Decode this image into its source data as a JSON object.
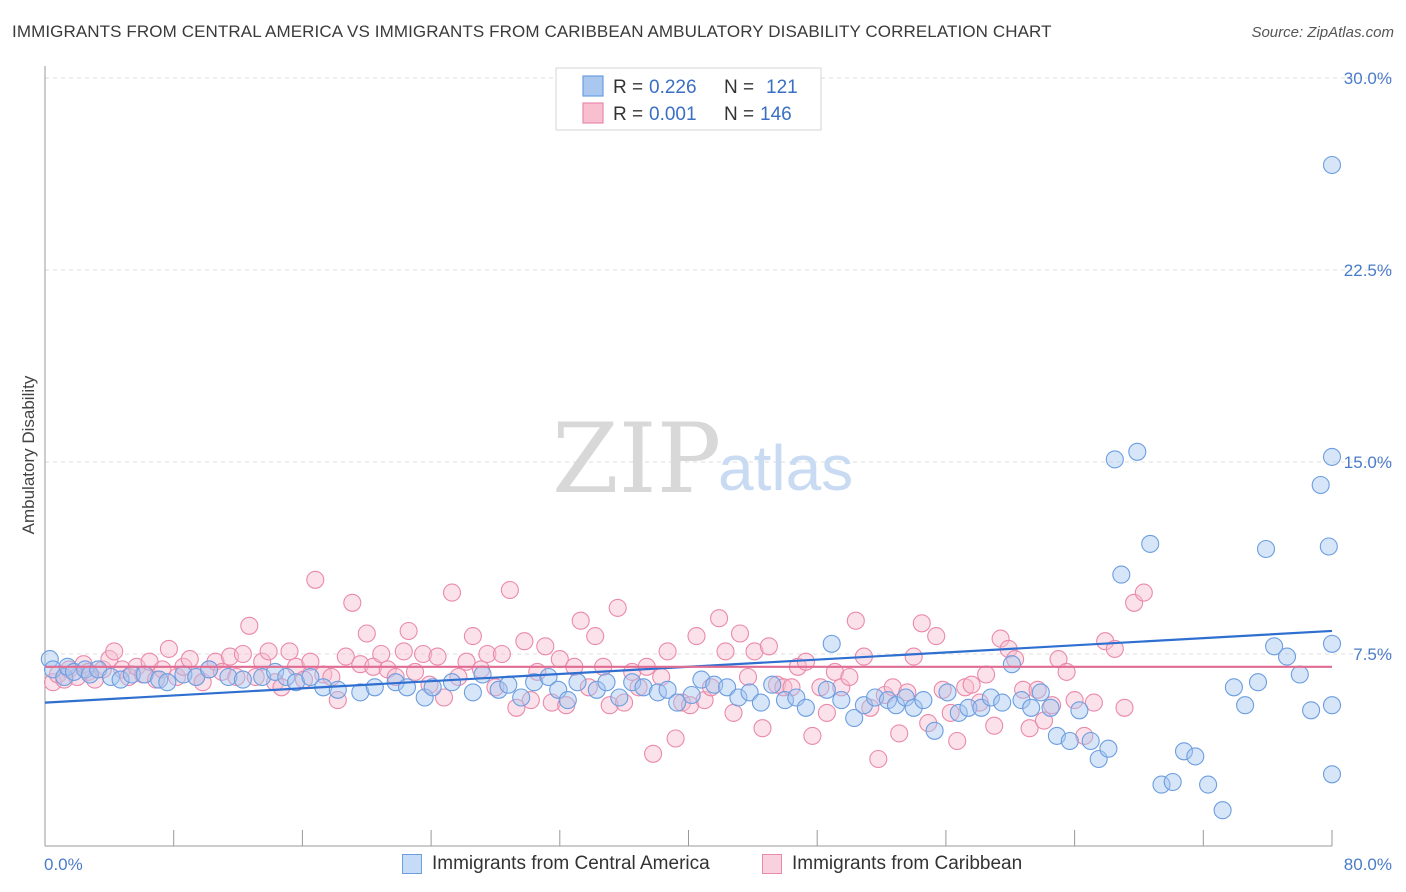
{
  "title": "IMMIGRANTS FROM CENTRAL AMERICA VS IMMIGRANTS FROM CARIBBEAN AMBULATORY DISABILITY CORRELATION CHART",
  "source": "Source: ZipAtlas.com",
  "watermark": {
    "zip": "ZIP",
    "atlas": "atlas"
  },
  "stats": [
    {
      "r_label": "R =",
      "r": "0.226",
      "n_label": "N =",
      "n": "121",
      "color": "#a9c7ef",
      "stroke": "#6c9ee0"
    },
    {
      "r_label": "R =",
      "r": "0.001",
      "n_label": "N =",
      "n": "146",
      "color": "#f7bfd0",
      "stroke": "#ea8aaa"
    }
  ],
  "legend": [
    "Immigrants from Central America",
    "Immigrants from Caribbean"
  ],
  "chart_data": {
    "type": "scatter",
    "title": "IMMIGRANTS FROM CENTRAL AMERICA VS IMMIGRANTS FROM CARIBBEAN AMBULATORY DISABILITY CORRELATION CHART",
    "ylabel": "Ambulatory Disability",
    "xlabel": "",
    "xlim": [
      0,
      80
    ],
    "ylim": [
      0,
      30
    ],
    "x_tick_labels": [
      "0.0%",
      "80.0%"
    ],
    "y_tick_labels": [
      "7.5%",
      "15.0%",
      "22.5%",
      "30.0%"
    ],
    "y_ticks": [
      7.5,
      15,
      22.5,
      30
    ],
    "grid": true,
    "legend_position": "bottom",
    "series": [
      {
        "name": "Immigrants from Central America",
        "color": "#6c9ee0",
        "fill": "rgba(166,198,240,0.45)",
        "trend": {
          "x": [
            0,
            80
          ],
          "y": [
            5.6,
            8.4
          ]
        },
        "points": [
          [
            0.3,
            7.3
          ],
          [
            0.5,
            6.9
          ],
          [
            1.2,
            6.6
          ],
          [
            1.4,
            7.0
          ],
          [
            1.8,
            6.8
          ],
          [
            2.5,
            6.9
          ],
          [
            2.8,
            6.7
          ],
          [
            3.3,
            6.9
          ],
          [
            4.1,
            6.6
          ],
          [
            4.7,
            6.5
          ],
          [
            5.4,
            6.7
          ],
          [
            6.2,
            6.7
          ],
          [
            7.1,
            6.5
          ],
          [
            7.6,
            6.4
          ],
          [
            8.6,
            6.7
          ],
          [
            9.4,
            6.6
          ],
          [
            10.2,
            6.9
          ],
          [
            11.4,
            6.6
          ],
          [
            12.3,
            6.5
          ],
          [
            13.5,
            6.6
          ],
          [
            14.3,
            6.8
          ],
          [
            15.0,
            6.6
          ],
          [
            15.6,
            6.4
          ],
          [
            16.5,
            6.6
          ],
          [
            17.3,
            6.2
          ],
          [
            18.2,
            6.1
          ],
          [
            19.6,
            6.0
          ],
          [
            20.5,
            6.2
          ],
          [
            21.8,
            6.4
          ],
          [
            22.5,
            6.2
          ],
          [
            23.6,
            5.8
          ],
          [
            24.1,
            6.2
          ],
          [
            25.3,
            6.4
          ],
          [
            26.6,
            6.0
          ],
          [
            27.2,
            6.7
          ],
          [
            28.2,
            6.1
          ],
          [
            28.8,
            6.3
          ],
          [
            29.6,
            5.8
          ],
          [
            30.4,
            6.4
          ],
          [
            31.3,
            6.6
          ],
          [
            31.9,
            6.1
          ],
          [
            32.5,
            5.7
          ],
          [
            33.1,
            6.4
          ],
          [
            34.3,
            6.1
          ],
          [
            34.9,
            6.4
          ],
          [
            35.7,
            5.8
          ],
          [
            36.5,
            6.4
          ],
          [
            37.2,
            6.2
          ],
          [
            38.1,
            6.0
          ],
          [
            38.7,
            6.1
          ],
          [
            39.3,
            5.6
          ],
          [
            40.2,
            5.9
          ],
          [
            40.8,
            6.5
          ],
          [
            41.6,
            6.3
          ],
          [
            42.4,
            6.2
          ],
          [
            43.1,
            5.8
          ],
          [
            43.8,
            6.0
          ],
          [
            44.5,
            5.6
          ],
          [
            45.2,
            6.3
          ],
          [
            46.0,
            5.7
          ],
          [
            46.7,
            5.8
          ],
          [
            47.3,
            5.4
          ],
          [
            48.6,
            6.1
          ],
          [
            48.9,
            7.9
          ],
          [
            49.5,
            5.7
          ],
          [
            50.3,
            5.0
          ],
          [
            50.9,
            5.5
          ],
          [
            51.6,
            5.8
          ],
          [
            52.4,
            5.7
          ],
          [
            52.9,
            5.5
          ],
          [
            53.5,
            5.8
          ],
          [
            54.0,
            5.4
          ],
          [
            54.6,
            5.7
          ],
          [
            55.3,
            4.5
          ],
          [
            56.1,
            6.0
          ],
          [
            56.8,
            5.2
          ],
          [
            57.4,
            5.4
          ],
          [
            58.2,
            5.4
          ],
          [
            58.8,
            5.8
          ],
          [
            59.5,
            5.6
          ],
          [
            60.1,
            7.1
          ],
          [
            60.7,
            5.7
          ],
          [
            61.3,
            5.4
          ],
          [
            61.9,
            6.0
          ],
          [
            62.5,
            5.4
          ],
          [
            62.9,
            4.3
          ],
          [
            63.7,
            4.1
          ],
          [
            64.3,
            5.3
          ],
          [
            65.0,
            4.1
          ],
          [
            65.5,
            3.4
          ],
          [
            66.1,
            3.8
          ],
          [
            66.5,
            15.1
          ],
          [
            66.9,
            10.6
          ],
          [
            67.9,
            15.4
          ],
          [
            68.7,
            11.8
          ],
          [
            69.4,
            2.4
          ],
          [
            70.1,
            2.5
          ],
          [
            70.8,
            3.7
          ],
          [
            71.5,
            3.5
          ],
          [
            72.3,
            2.4
          ],
          [
            73.2,
            1.4
          ],
          [
            73.9,
            6.2
          ],
          [
            74.6,
            5.5
          ],
          [
            75.4,
            6.4
          ],
          [
            75.9,
            11.6
          ],
          [
            76.4,
            7.8
          ],
          [
            77.2,
            7.4
          ],
          [
            78.0,
            6.7
          ],
          [
            78.7,
            5.3
          ],
          [
            79.3,
            14.1
          ],
          [
            79.8,
            11.7
          ],
          [
            80.0,
            15.2
          ],
          [
            80.0,
            7.9
          ],
          [
            80.0,
            5.5
          ],
          [
            80.0,
            2.8
          ],
          [
            80.0,
            26.6
          ]
        ]
      },
      {
        "name": "Immigrants from Caribbean",
        "color": "#ea8aaa",
        "fill": "rgba(247,191,208,0.45)",
        "trend": {
          "x": [
            0,
            80
          ],
          "y": [
            7.0,
            7.0
          ]
        },
        "points": [
          [
            0.5,
            6.4
          ],
          [
            0.8,
            6.7
          ],
          [
            1.2,
            6.5
          ],
          [
            1.5,
            6.9
          ],
          [
            2.0,
            6.6
          ],
          [
            2.4,
            7.1
          ],
          [
            2.7,
            6.8
          ],
          [
            3.1,
            6.5
          ],
          [
            3.6,
            6.9
          ],
          [
            4.0,
            7.3
          ],
          [
            4.3,
            7.6
          ],
          [
            4.8,
            6.9
          ],
          [
            5.2,
            6.6
          ],
          [
            5.7,
            7.0
          ],
          [
            6.1,
            6.7
          ],
          [
            6.5,
            7.2
          ],
          [
            6.9,
            6.5
          ],
          [
            7.3,
            6.9
          ],
          [
            7.7,
            7.7
          ],
          [
            8.2,
            6.6
          ],
          [
            8.6,
            7.0
          ],
          [
            9.0,
            7.3
          ],
          [
            9.4,
            6.6
          ],
          [
            9.8,
            6.4
          ],
          [
            10.2,
            6.9
          ],
          [
            10.6,
            7.2
          ],
          [
            11.0,
            6.8
          ],
          [
            11.5,
            7.4
          ],
          [
            11.9,
            6.6
          ],
          [
            12.3,
            7.5
          ],
          [
            12.7,
            8.6
          ],
          [
            13.1,
            6.6
          ],
          [
            13.5,
            7.2
          ],
          [
            13.9,
            7.6
          ],
          [
            14.3,
            6.4
          ],
          [
            14.7,
            6.2
          ],
          [
            15.2,
            7.6
          ],
          [
            15.6,
            7.0
          ],
          [
            16.1,
            6.5
          ],
          [
            16.5,
            7.2
          ],
          [
            16.8,
            10.4
          ],
          [
            17.3,
            6.7
          ],
          [
            17.8,
            6.6
          ],
          [
            18.2,
            5.7
          ],
          [
            18.7,
            7.4
          ],
          [
            19.1,
            9.5
          ],
          [
            19.6,
            7.1
          ],
          [
            20.0,
            8.3
          ],
          [
            20.4,
            7.0
          ],
          [
            20.9,
            7.5
          ],
          [
            21.3,
            6.9
          ],
          [
            21.8,
            6.6
          ],
          [
            22.3,
            7.6
          ],
          [
            22.6,
            8.4
          ],
          [
            23.0,
            6.8
          ],
          [
            23.5,
            7.5
          ],
          [
            23.9,
            6.3
          ],
          [
            24.4,
            7.4
          ],
          [
            24.8,
            5.8
          ],
          [
            25.3,
            9.9
          ],
          [
            25.7,
            6.6
          ],
          [
            26.2,
            7.2
          ],
          [
            26.6,
            8.2
          ],
          [
            27.1,
            6.9
          ],
          [
            27.5,
            7.5
          ],
          [
            28.0,
            6.2
          ],
          [
            28.4,
            7.5
          ],
          [
            28.9,
            10.0
          ],
          [
            29.3,
            5.4
          ],
          [
            29.8,
            8.0
          ],
          [
            30.2,
            5.7
          ],
          [
            30.6,
            6.8
          ],
          [
            31.1,
            7.8
          ],
          [
            31.5,
            5.6
          ],
          [
            32.0,
            7.3
          ],
          [
            32.4,
            5.5
          ],
          [
            32.9,
            7.0
          ],
          [
            33.3,
            8.8
          ],
          [
            33.8,
            6.2
          ],
          [
            34.2,
            8.2
          ],
          [
            34.7,
            7.0
          ],
          [
            35.1,
            5.5
          ],
          [
            35.6,
            9.3
          ],
          [
            36.0,
            5.6
          ],
          [
            36.5,
            6.8
          ],
          [
            36.9,
            6.2
          ],
          [
            37.4,
            7.0
          ],
          [
            37.8,
            3.6
          ],
          [
            38.3,
            6.6
          ],
          [
            38.7,
            7.6
          ],
          [
            39.2,
            4.2
          ],
          [
            39.6,
            5.6
          ],
          [
            40.1,
            5.5
          ],
          [
            40.5,
            8.2
          ],
          [
            41.0,
            5.7
          ],
          [
            41.4,
            6.2
          ],
          [
            41.9,
            8.9
          ],
          [
            42.3,
            7.6
          ],
          [
            42.8,
            5.2
          ],
          [
            43.2,
            8.3
          ],
          [
            43.7,
            6.6
          ],
          [
            44.1,
            7.6
          ],
          [
            44.6,
            4.6
          ],
          [
            45.0,
            7.8
          ],
          [
            45.5,
            6.3
          ],
          [
            45.9,
            6.2
          ],
          [
            46.4,
            6.2
          ],
          [
            46.8,
            7.0
          ],
          [
            47.3,
            7.2
          ],
          [
            47.7,
            4.3
          ],
          [
            48.2,
            6.2
          ],
          [
            48.6,
            5.2
          ],
          [
            49.1,
            6.8
          ],
          [
            49.5,
            6.2
          ],
          [
            50.0,
            6.6
          ],
          [
            50.4,
            8.8
          ],
          [
            50.9,
            7.4
          ],
          [
            51.3,
            5.4
          ],
          [
            51.8,
            3.4
          ],
          [
            52.2,
            5.9
          ],
          [
            52.7,
            6.2
          ],
          [
            53.1,
            4.4
          ],
          [
            53.6,
            6.0
          ],
          [
            54.0,
            7.4
          ],
          [
            54.5,
            8.7
          ],
          [
            54.9,
            4.8
          ],
          [
            55.4,
            8.2
          ],
          [
            55.8,
            6.1
          ],
          [
            56.3,
            5.2
          ],
          [
            56.7,
            4.1
          ],
          [
            57.2,
            6.2
          ],
          [
            57.6,
            6.3
          ],
          [
            58.1,
            5.6
          ],
          [
            58.5,
            6.7
          ],
          [
            59.0,
            4.7
          ],
          [
            59.4,
            8.1
          ],
          [
            59.9,
            7.7
          ],
          [
            60.3,
            7.3
          ],
          [
            60.8,
            6.1
          ],
          [
            61.2,
            4.6
          ],
          [
            61.7,
            6.1
          ],
          [
            62.1,
            4.9
          ],
          [
            62.6,
            5.5
          ],
          [
            63.0,
            7.3
          ],
          [
            63.5,
            6.8
          ],
          [
            64.0,
            5.7
          ],
          [
            64.6,
            4.3
          ],
          [
            65.2,
            5.6
          ],
          [
            65.9,
            8.0
          ],
          [
            66.5,
            7.7
          ],
          [
            67.1,
            5.4
          ],
          [
            67.7,
            9.5
          ],
          [
            68.3,
            9.9
          ]
        ]
      }
    ]
  }
}
